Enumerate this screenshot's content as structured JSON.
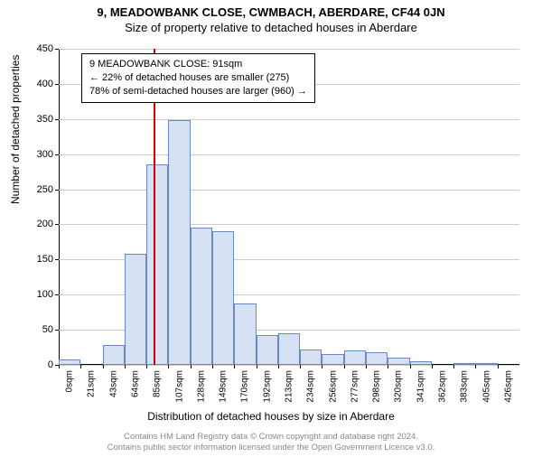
{
  "title_main": "9, MEADOWBANK CLOSE, CWMBACH, ABERDARE, CF44 0JN",
  "title_sub": "Size of property relative to detached houses in Aberdare",
  "chart": {
    "type": "histogram",
    "background_color": "#ffffff",
    "grid_color": "#cccccc",
    "bar_fill": "#d6e2f3",
    "bar_border": "#6a8abf",
    "marker_color": "#cc0000",
    "marker_x_value": 91,
    "ylim": [
      0,
      450
    ],
    "ytick_step": 50,
    "yticks": [
      0,
      50,
      100,
      150,
      200,
      250,
      300,
      350,
      400,
      450
    ],
    "xlim": [
      0,
      440
    ],
    "xtick_step": 21.3,
    "xticks_labels": [
      "0sqm",
      "21sqm",
      "43sqm",
      "64sqm",
      "85sqm",
      "107sqm",
      "128sqm",
      "149sqm",
      "170sqm",
      "192sqm",
      "213sqm",
      "234sqm",
      "256sqm",
      "277sqm",
      "298sqm",
      "320sqm",
      "341sqm",
      "362sqm",
      "383sqm",
      "405sqm",
      "426sqm"
    ],
    "bar_values": [
      8,
      0,
      28,
      158,
      285,
      348,
      195,
      190,
      88,
      42,
      45,
      22,
      15,
      20,
      18,
      10,
      5,
      0,
      2,
      2,
      0
    ],
    "ylabel": "Number of detached properties",
    "xlabel": "Distribution of detached houses by size in Aberdare",
    "label_fontsize": 12,
    "tick_fontsize": 11
  },
  "info_box": {
    "line1": "9 MEADOWBANK CLOSE: 91sqm",
    "line2": "← 22% of detached houses are smaller (275)",
    "line3": "78% of semi-detached houses are larger (960) →",
    "border_color": "#000000",
    "background": "#ffffff",
    "fontsize": 11
  },
  "footer": {
    "line1": "Contains HM Land Registry data © Crown copyright and database right 2024.",
    "line2": "Contains public sector information licensed under the Open Government Licence v3.0.",
    "color": "#888888",
    "fontsize": 9.5
  }
}
